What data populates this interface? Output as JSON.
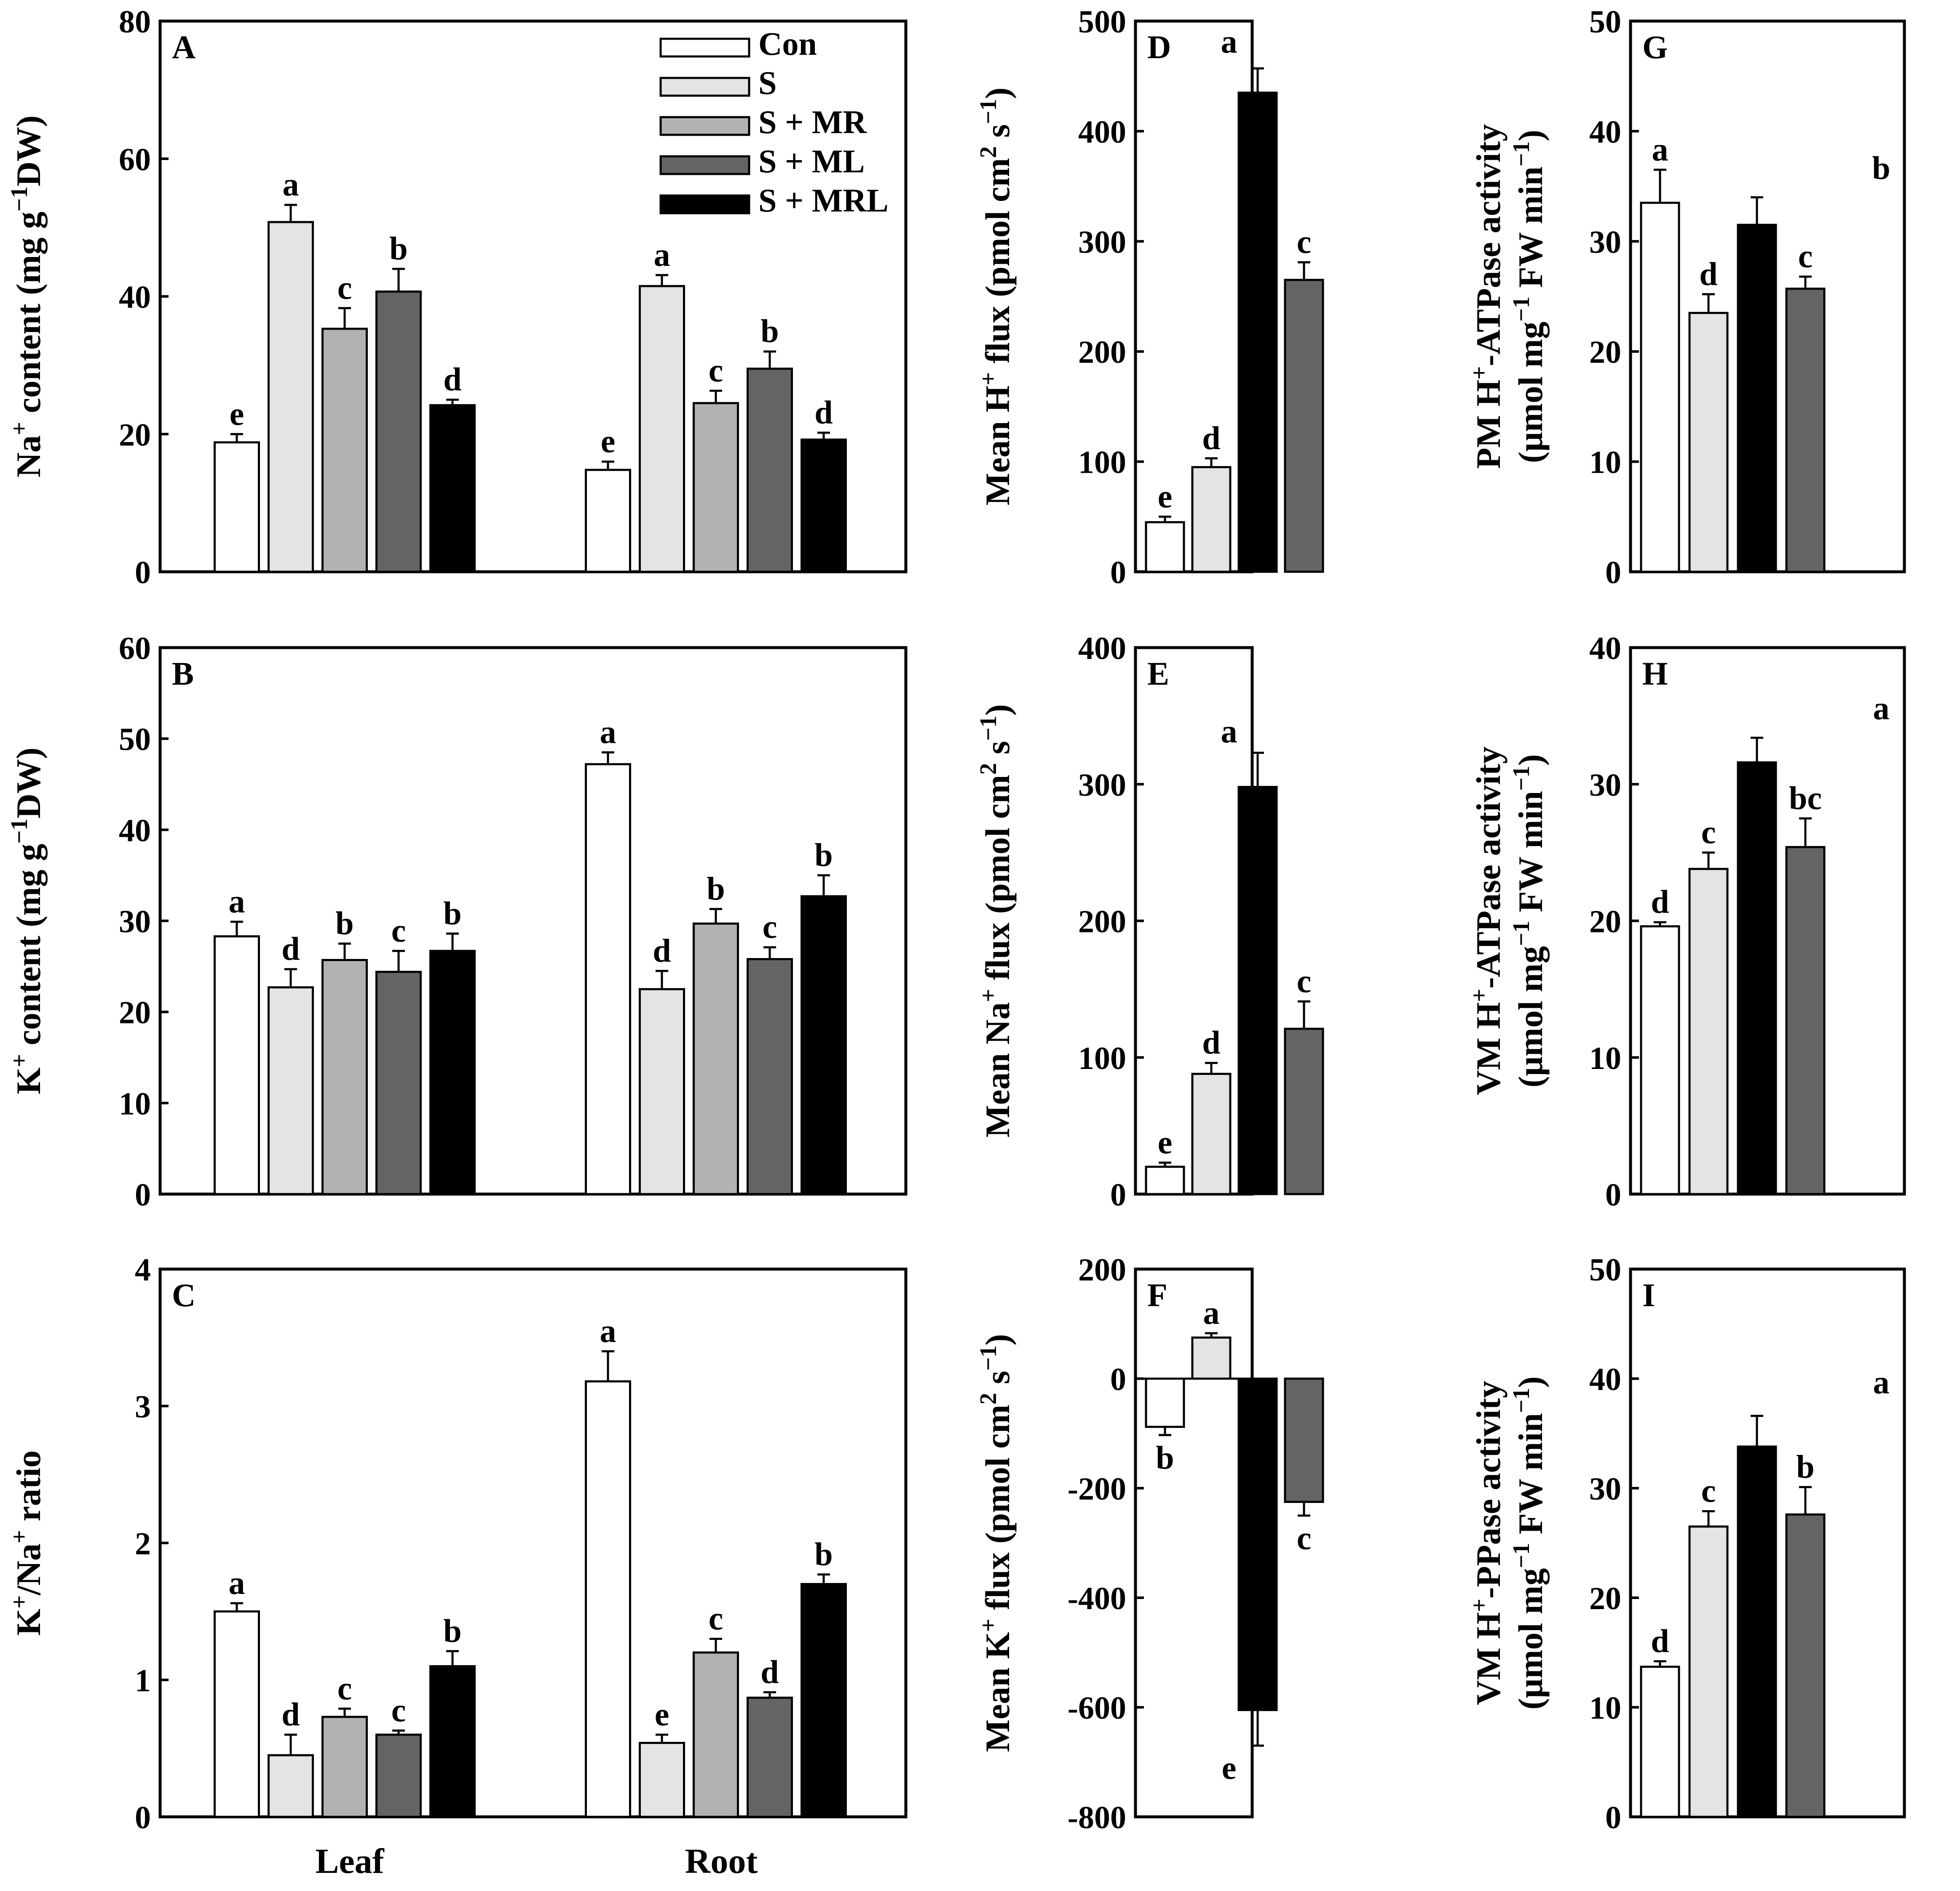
{
  "legend": {
    "entries": [
      {
        "label": "Con",
        "color": "#ffffff"
      },
      {
        "label": "S",
        "color": "#e4e4e4"
      },
      {
        "label": "S + MR",
        "color": "#b2b2b2"
      },
      {
        "label": "S + ML",
        "color": "#646464"
      },
      {
        "label": "S + MRL",
        "color": "#000000"
      }
    ]
  },
  "colors": {
    "Con": "#ffffff",
    "S": "#e4e4e4",
    "S + MR": "#b2b2b2",
    "S + ML": "#646464",
    "S + MRL": "#000000",
    "D_E_F_G_H_I_bar_order": [
      "#ffffff",
      "#e4e4e4",
      "#000000",
      "#646464"
    ]
  },
  "chart_data": [
    {
      "panel": "A",
      "type": "bar",
      "title": "",
      "xlabel": "",
      "ylabel": "Na+ content (mg g−1 DW)",
      "ylim": [
        0,
        80
      ],
      "ticks": [
        0,
        20,
        40,
        60,
        80
      ],
      "categories": [
        "Leaf",
        "Root"
      ],
      "series": [
        {
          "name": "Con",
          "values": [
            18.8,
            14.8
          ],
          "errors": [
            1.2,
            1.2
          ],
          "letters": [
            "e",
            "e"
          ]
        },
        {
          "name": "S",
          "values": [
            50.8,
            41.5
          ],
          "errors": [
            2.5,
            1.6
          ],
          "letters": [
            "a",
            "a"
          ]
        },
        {
          "name": "S + MR",
          "values": [
            35.3,
            24.5
          ],
          "errors": [
            3.0,
            1.8
          ],
          "letters": [
            "c",
            "c"
          ]
        },
        {
          "name": "S + ML",
          "values": [
            40.7,
            29.5
          ],
          "errors": [
            3.3,
            2.5
          ],
          "letters": [
            "b",
            "b"
          ]
        },
        {
          "name": "S + MRL",
          "values": [
            24.2,
            19.2
          ],
          "errors": [
            0.8,
            1.0
          ],
          "letters": [
            "d",
            "d"
          ]
        }
      ]
    },
    {
      "panel": "B",
      "type": "bar",
      "title": "",
      "xlabel": "",
      "ylabel": "K+ content (mg g−1 DW)",
      "ylim": [
        0,
        60
      ],
      "ticks": [
        0,
        10,
        20,
        30,
        40,
        50,
        60
      ],
      "categories": [
        "Leaf",
        "Root"
      ],
      "series": [
        {
          "name": "Con",
          "values": [
            28.3,
            47.2
          ],
          "errors": [
            1.6,
            1.3
          ],
          "letters": [
            "a",
            "a"
          ]
        },
        {
          "name": "S",
          "values": [
            22.7,
            22.5
          ],
          "errors": [
            2.0,
            2.0
          ],
          "letters": [
            "d",
            "d"
          ]
        },
        {
          "name": "S + MR",
          "values": [
            25.7,
            29.7
          ],
          "errors": [
            1.8,
            1.6
          ],
          "letters": [
            "b",
            "b"
          ]
        },
        {
          "name": "S + ML",
          "values": [
            24.4,
            25.8
          ],
          "errors": [
            2.3,
            1.3
          ],
          "letters": [
            "c",
            "c"
          ]
        },
        {
          "name": "S + MRL",
          "values": [
            26.7,
            32.7
          ],
          "errors": [
            1.9,
            2.3
          ],
          "letters": [
            "b",
            "b"
          ]
        }
      ]
    },
    {
      "panel": "C",
      "type": "bar",
      "title": "",
      "xlabel": "",
      "ylabel": "K+/Na+ ratio",
      "ylim": [
        0,
        4
      ],
      "ticks": [
        0,
        1,
        2,
        3,
        4
      ],
      "categories": [
        "Leaf",
        "Root"
      ],
      "series": [
        {
          "name": "Con",
          "values": [
            1.5,
            3.18
          ],
          "errors": [
            0.06,
            0.22
          ],
          "letters": [
            "a",
            "a"
          ]
        },
        {
          "name": "S",
          "values": [
            0.45,
            0.54
          ],
          "errors": [
            0.15,
            0.06
          ],
          "letters": [
            "d",
            "e"
          ]
        },
        {
          "name": "S + MR",
          "values": [
            0.73,
            1.2
          ],
          "errors": [
            0.06,
            0.1
          ],
          "letters": [
            "c",
            "c"
          ]
        },
        {
          "name": "S + ML",
          "values": [
            0.6,
            0.87
          ],
          "errors": [
            0.03,
            0.04
          ],
          "letters": [
            "c",
            "d"
          ]
        },
        {
          "name": "S + MRL",
          "values": [
            1.1,
            1.7
          ],
          "errors": [
            0.11,
            0.07
          ],
          "letters": [
            "b",
            "b"
          ]
        }
      ]
    },
    {
      "panel": "D",
      "type": "bar",
      "title": "",
      "xlabel": "",
      "ylabel": "Mean H+ flux (pmol cm2 s−1)",
      "ylim": [
        0,
        500
      ],
      "ticks": [
        0,
        100,
        200,
        300,
        400,
        500
      ],
      "values": [
        45,
        95,
        435,
        265
      ],
      "errors": [
        5,
        8,
        22,
        16
      ],
      "letters": [
        "e",
        "d",
        "a",
        "c"
      ]
    },
    {
      "panel": "E",
      "type": "bar",
      "title": "",
      "xlabel": "",
      "ylabel": "Mean Na+ flux (pmol cm2 s−1)",
      "ylim": [
        0,
        400
      ],
      "ticks": [
        0,
        100,
        200,
        300,
        400
      ],
      "values": [
        20,
        88,
        298,
        121
      ],
      "errors": [
        3,
        8,
        25,
        20
      ],
      "letters": [
        "e",
        "d",
        "a",
        "c"
      ]
    },
    {
      "panel": "F",
      "type": "bar",
      "title": "",
      "xlabel": "",
      "ylabel": "Mean K+ flux (pmol cm2 s−1)",
      "ylim": [
        -800,
        200
      ],
      "ticks": [
        -800,
        -600,
        -400,
        -200,
        0,
        200
      ],
      "values": [
        -88,
        75,
        -605,
        -225
      ],
      "errors": [
        15,
        8,
        65,
        25
      ],
      "letters": [
        "b",
        "a",
        "e",
        "c"
      ]
    },
    {
      "panel": "G",
      "type": "bar",
      "title": "",
      "xlabel": "",
      "ylabel": "PM H+-ATPase activity (μmol mg−1 FW min−1)",
      "ylim": [
        0,
        50
      ],
      "ticks": [
        0,
        10,
        20,
        30,
        40,
        50
      ],
      "values": [
        33.5,
        23.5,
        31.5,
        25.7
      ],
      "errors": [
        3.0,
        1.7,
        2.5,
        1.1
      ],
      "letters": [
        "a",
        "d",
        "b",
        "c"
      ]
    },
    {
      "panel": "H",
      "type": "bar",
      "title": "",
      "xlabel": "",
      "ylabel": "VM H+-ATPase activity (μmol mg−1 FW min−1)",
      "ylim": [
        0,
        40
      ],
      "ticks": [
        0,
        10,
        20,
        30,
        40
      ],
      "values": [
        19.6,
        23.8,
        31.6,
        25.4
      ],
      "errors": [
        0.3,
        1.2,
        1.8,
        2.1
      ],
      "letters": [
        "d",
        "c",
        "a",
        "bc"
      ]
    },
    {
      "panel": "I",
      "type": "bar",
      "title": "",
      "xlabel": "",
      "ylabel": "VM H+-PPase activity (μmol mg−1 FW min−1)",
      "ylim": [
        0,
        50
      ],
      "ticks": [
        0,
        10,
        20,
        30,
        40,
        50
      ],
      "values": [
        13.7,
        26.5,
        33.8,
        27.6
      ],
      "errors": [
        0.5,
        1.4,
        2.8,
        2.5
      ],
      "letters": [
        "d",
        "c",
        "a",
        "b"
      ]
    }
  ]
}
